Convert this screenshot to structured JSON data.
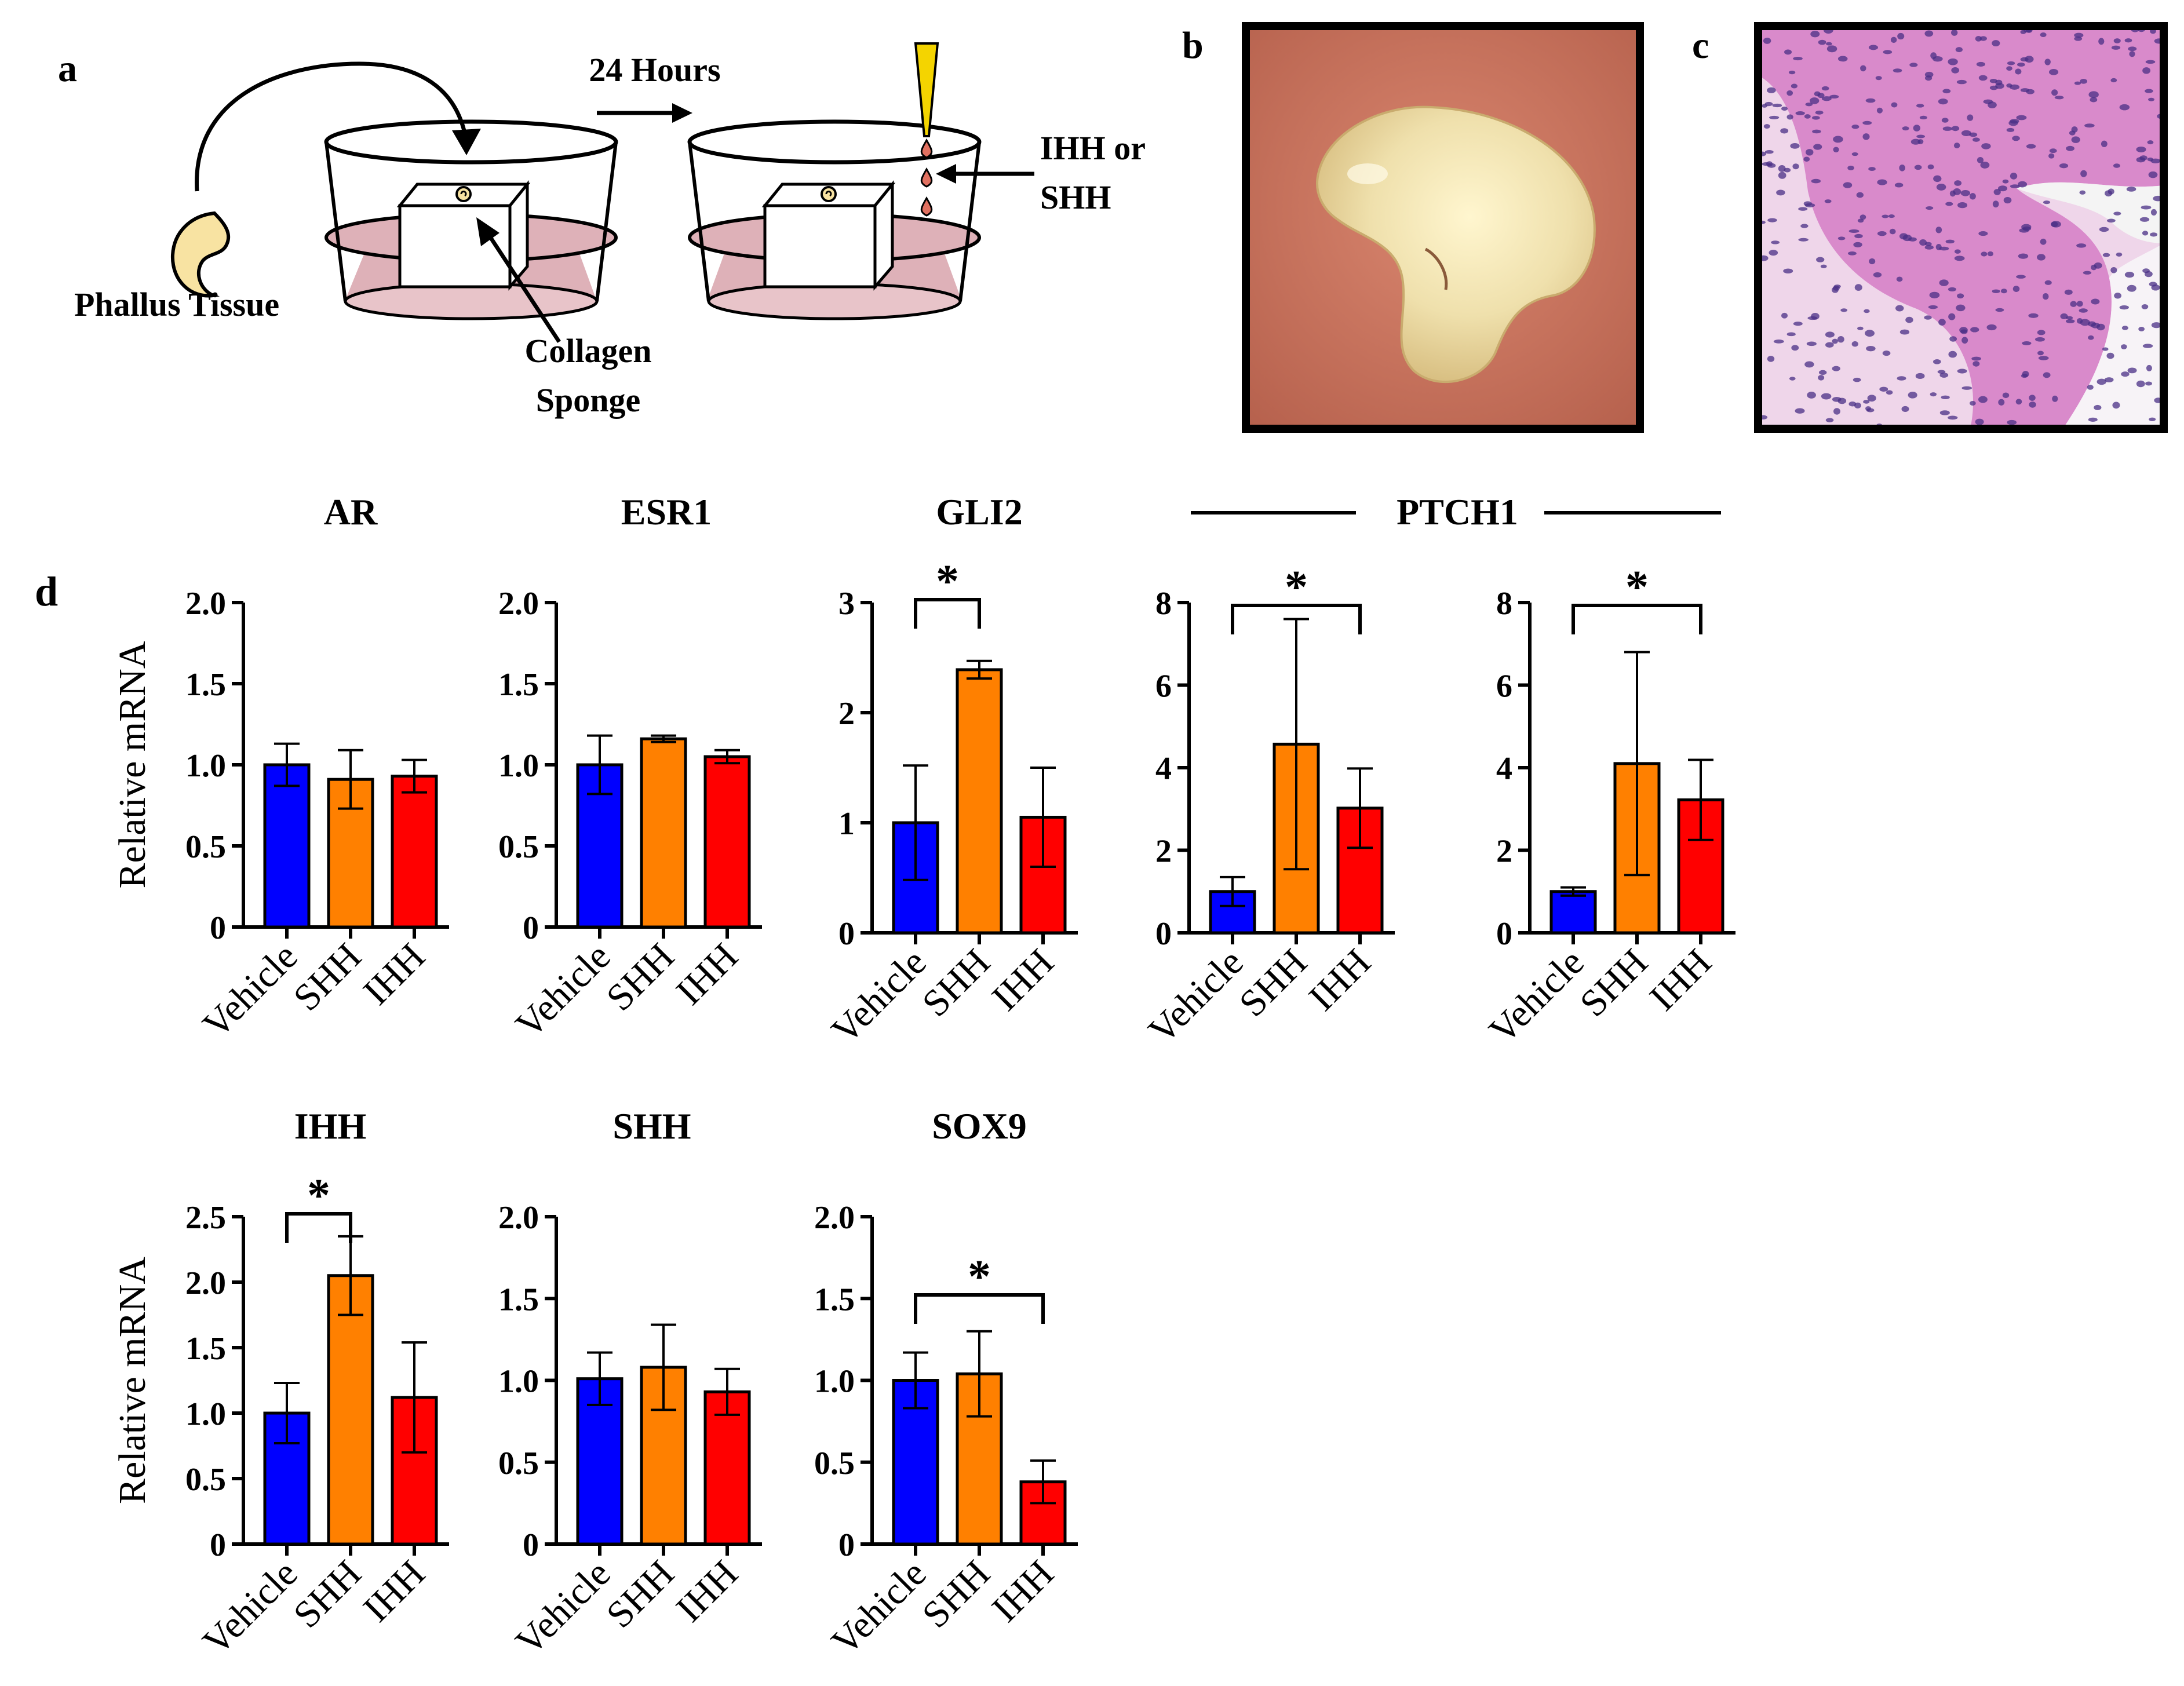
{
  "panels": {
    "a": "a",
    "b": "b",
    "c": "c",
    "d": "d"
  },
  "schematic": {
    "phallus_tissue": "Phallus Tissue",
    "collagen_line1": "Collagen",
    "collagen_line2": "Sponge",
    "hours": "24 Hours",
    "treatment_line1": "IHH or",
    "treatment_line2": "SHH"
  },
  "ptch1_group_title": "PTCH1",
  "ylabel": "Relative mRNA",
  "colors": {
    "vehicle": "#0000ff",
    "shh": "#ff8000",
    "ihh": "#ff0000",
    "photo_bg": "#c9735f",
    "tissue": "#e8d9a3",
    "histology_bg": "#e9b7de",
    "epithelium": "#c567b6",
    "nuclei": "#4a2f86",
    "medium": "#deb1b8",
    "phallus_fill": "#f8e3a2"
  },
  "chart_data": [
    {
      "type": "bar",
      "title": "AR",
      "categories": [
        "Vehicle",
        "SHH",
        "IHH"
      ],
      "values": [
        1.0,
        0.91,
        0.93
      ],
      "errors": [
        0.13,
        0.18,
        0.1
      ],
      "ylim": [
        0,
        2.0
      ],
      "yticks": [
        "0",
        "0.5",
        "1.0",
        "1.5",
        "2.0"
      ],
      "ytick_values": [
        0,
        0.5,
        1.0,
        1.5,
        2.0
      ],
      "ylabel": "Relative mRNA",
      "significance": []
    },
    {
      "type": "bar",
      "title": "ESR1",
      "categories": [
        "Vehicle",
        "SHH",
        "IHH"
      ],
      "values": [
        1.0,
        1.16,
        1.05
      ],
      "errors": [
        0.18,
        0.02,
        0.04
      ],
      "ylim": [
        0,
        2.0
      ],
      "yticks": [
        "0",
        "0.5",
        "1.0",
        "1.5",
        "2.0"
      ],
      "ytick_values": [
        0,
        0.5,
        1.0,
        1.5,
        2.0
      ],
      "ylabel": "",
      "significance": []
    },
    {
      "type": "bar",
      "title": "GLI2",
      "categories": [
        "Vehicle",
        "SHH",
        "IHH"
      ],
      "values": [
        1.0,
        2.39,
        1.05
      ],
      "errors": [
        0.52,
        0.08,
        0.45
      ],
      "ylim": [
        0,
        3
      ],
      "yticks": [
        "0",
        "1",
        "2",
        "3"
      ],
      "ytick_values": [
        0,
        1,
        2,
        3
      ],
      "ylabel": "",
      "significance": [
        {
          "from": 0,
          "to": 1,
          "label": "*"
        }
      ]
    },
    {
      "type": "bar",
      "title": "",
      "categories": [
        "Vehicle",
        "SHH",
        "IHH"
      ],
      "values": [
        1.0,
        4.57,
        3.02
      ],
      "errors": [
        0.35,
        3.03,
        0.96
      ],
      "ylim": [
        0,
        8
      ],
      "yticks": [
        "0",
        "2",
        "4",
        "6",
        "8"
      ],
      "ytick_values": [
        0,
        2,
        4,
        6,
        8
      ],
      "ylabel": "",
      "significance": [
        {
          "from": 0,
          "to": 2,
          "label": "*"
        }
      ]
    },
    {
      "type": "bar",
      "title": "",
      "categories": [
        "Vehicle",
        "SHH",
        "IHH"
      ],
      "values": [
        1.0,
        4.1,
        3.22
      ],
      "errors": [
        0.1,
        2.7,
        0.97
      ],
      "ylim": [
        0,
        8
      ],
      "yticks": [
        "0",
        "2",
        "4",
        "6",
        "8"
      ],
      "ytick_values": [
        0,
        2,
        4,
        6,
        8
      ],
      "ylabel": "",
      "significance": [
        {
          "from": 0,
          "to": 2,
          "label": "*"
        }
      ]
    },
    {
      "type": "bar",
      "title": "IHH",
      "categories": [
        "Vehicle",
        "SHH",
        "IHH"
      ],
      "values": [
        1.0,
        2.05,
        1.12
      ],
      "errors": [
        0.23,
        0.3,
        0.42
      ],
      "ylim": [
        0,
        2.5
      ],
      "yticks": [
        "0",
        "0.5",
        "1.0",
        "1.5",
        "2.0",
        "2.5"
      ],
      "ytick_values": [
        0,
        0.5,
        1.0,
        1.5,
        2.0,
        2.5
      ],
      "ylabel": "Relative mRNA",
      "significance": [
        {
          "from": 0,
          "to": 1,
          "label": "*"
        }
      ]
    },
    {
      "type": "bar",
      "title": "SHH",
      "categories": [
        "Vehicle",
        "SHH",
        "IHH"
      ],
      "values": [
        1.01,
        1.08,
        0.93
      ],
      "errors": [
        0.16,
        0.26,
        0.14
      ],
      "ylim": [
        0,
        2.0
      ],
      "yticks": [
        "0",
        "0.5",
        "1.0",
        "1.5",
        "2.0"
      ],
      "ytick_values": [
        0,
        0.5,
        1.0,
        1.5,
        2.0
      ],
      "ylabel": "",
      "significance": []
    },
    {
      "type": "bar",
      "title": "SOX9",
      "categories": [
        "Vehicle",
        "SHH",
        "IHH"
      ],
      "values": [
        1.0,
        1.04,
        0.38
      ],
      "errors": [
        0.17,
        0.26,
        0.13
      ],
      "ylim": [
        0,
        2.0
      ],
      "yticks": [
        "0",
        "0.5",
        "1.0",
        "1.5",
        "2.0"
      ],
      "ytick_values": [
        0,
        0.5,
        1.0,
        1.5,
        2.0
      ],
      "ylabel": "",
      "significance": [
        {
          "from": 0,
          "to": 2,
          "label": "*"
        }
      ]
    }
  ]
}
